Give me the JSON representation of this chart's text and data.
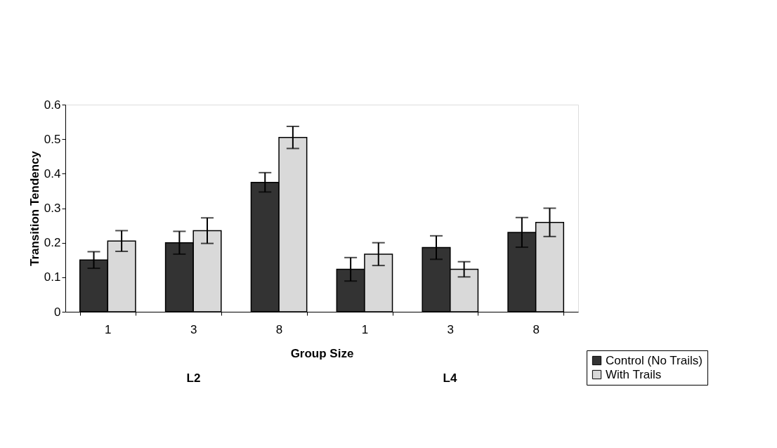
{
  "chart_data": {
    "type": "bar",
    "xlabel": "Group Size",
    "ylabel": "Transition Tendency",
    "categories": [
      "1",
      "3",
      "8",
      "1",
      "3",
      "8"
    ],
    "series": [
      {
        "name": "Control (No Trails)",
        "color": "#333333",
        "values": [
          0.15,
          0.2,
          0.375,
          0.123,
          0.186,
          0.23
        ],
        "errors": [
          0.024,
          0.033,
          0.028,
          0.034,
          0.034,
          0.043
        ]
      },
      {
        "name": "With Trails",
        "color": "#d9d9d9",
        "values": [
          0.205,
          0.235,
          0.505,
          0.167,
          0.123,
          0.259
        ],
        "errors": [
          0.03,
          0.037,
          0.032,
          0.033,
          0.022,
          0.041
        ]
      }
    ],
    "ylim": [
      0,
      0.6
    ],
    "yticks": [
      0,
      0.1,
      0.2,
      0.3,
      0.4,
      0.5,
      0.6
    ],
    "grid": false,
    "legend": "bottom right",
    "annotations": [
      "L2",
      "L4"
    ]
  }
}
